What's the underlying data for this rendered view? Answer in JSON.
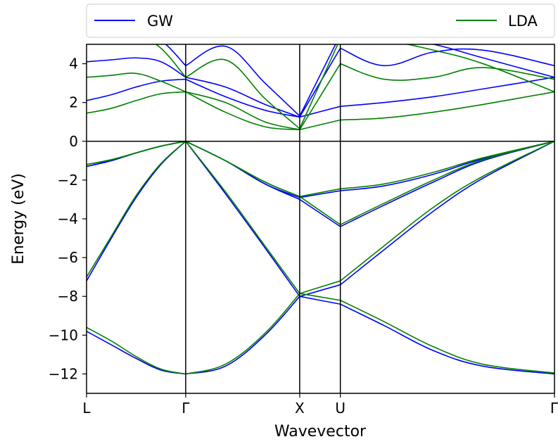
{
  "chart_data": {
    "type": "line",
    "title": "",
    "xlabel": "Wavevector",
    "ylabel": "Energy (eV)",
    "ylim": [
      -13,
      5
    ],
    "xlim": [
      0,
      4.72
    ],
    "y_ticks": [
      4,
      2,
      0,
      -2,
      -4,
      -6,
      -8,
      -10,
      -12
    ],
    "y_tick_labels": [
      "4",
      "2",
      "0",
      "−2",
      "−4",
      "−6",
      "−8",
      "−10",
      "−12"
    ],
    "k_points": [
      {
        "label": "L",
        "x": 0
      },
      {
        "label": "Γ",
        "x": 1.0
      },
      {
        "label": "X",
        "x": 2.15
      },
      {
        "label": "U",
        "x": 2.56
      },
      {
        "label": "Γ",
        "x": 4.72
      }
    ],
    "grid": false,
    "legend": {
      "placement": "top",
      "entries": [
        "GW",
        "LDA"
      ]
    },
    "colors": {
      "GW": "#0000ff",
      "LDA": "#008000"
    },
    "series": [
      {
        "name": "GW",
        "color": "#0000ff",
        "bands": [
          {
            "x": [
              0,
              0.25,
              0.5,
              0.75,
              1.0,
              1.4,
              1.8,
              2.15,
              2.56,
              3.0,
              3.5,
              4.0,
              4.72
            ],
            "y": [
              -9.8,
              -10.5,
              -11.2,
              -11.8,
              -12.0,
              -11.6,
              -10.0,
              -8.0,
              -8.4,
              -9.5,
              -10.8,
              -11.6,
              -12.0
            ]
          },
          {
            "x": [
              0,
              0.25,
              0.5,
              0.75,
              1.0,
              1.4,
              1.8,
              2.15,
              2.56,
              3.0,
              3.5,
              4.0,
              4.72
            ],
            "y": [
              -7.2,
              -5.0,
              -2.9,
              -1.2,
              0,
              -2.7,
              -5.5,
              -8.0,
              -7.4,
              -5.6,
              -3.6,
              -1.9,
              0
            ]
          },
          {
            "x": [
              0,
              0.25,
              0.5,
              0.75,
              1.0,
              1.4,
              1.8,
              2.15,
              2.56,
              3.0,
              3.5,
              4.0,
              4.72
            ],
            "y": [
              -1.3,
              -1.0,
              -0.6,
              -0.25,
              0,
              -1.0,
              -2.2,
              -3.0,
              -4.4,
              -3.3,
              -2.1,
              -1.0,
              0
            ]
          },
          {
            "x": [
              0,
              0.25,
              0.5,
              0.75,
              1.0,
              1.4,
              1.8,
              2.15,
              2.56,
              3.0,
              3.5,
              4.0,
              4.72
            ],
            "y": [
              -1.3,
              -1.0,
              -0.6,
              -0.25,
              0,
              -1.0,
              -2.2,
              -2.9,
              -2.55,
              -2.3,
              -1.7,
              -0.9,
              0
            ]
          },
          {
            "x": [
              0,
              0.25,
              0.5,
              0.75,
              1.0,
              1.4,
              1.8,
              2.15,
              2.56,
              3.0,
              3.5,
              4.0,
              4.72
            ],
            "y": [
              2.1,
              2.4,
              2.8,
              3.1,
              3.2,
              2.3,
              1.6,
              1.25,
              1.8,
              2.0,
              2.3,
              2.7,
              3.3
            ]
          },
          {
            "x": [
              0,
              0.25,
              0.5,
              0.75,
              1.0,
              1.4,
              1.8,
              2.15,
              2.56,
              3.0,
              3.5,
              4.0,
              4.72
            ],
            "y": [
              4.1,
              4.2,
              4.3,
              4.1,
              3.3,
              2.8,
              1.9,
              1.25,
              4.8,
              3.9,
              4.6,
              4.7,
              3.9
            ]
          },
          {
            "x": [
              0,
              0.25,
              0.5,
              0.75,
              1.0,
              1.4,
              1.8,
              2.15,
              2.56,
              3.0,
              3.5,
              4.0,
              4.72
            ],
            "y": [
              5.5,
              5.6,
              5.6,
              5.2,
              3.9,
              4.9,
              3.0,
              1.3,
              5.5,
              5.4,
              5.0,
              4.3,
              3.3
            ]
          }
        ]
      },
      {
        "name": "LDA",
        "color": "#008000",
        "bands": [
          {
            "x": [
              0,
              0.25,
              0.5,
              0.75,
              1.0,
              1.4,
              1.8,
              2.15,
              2.56,
              3.0,
              3.5,
              4.0,
              4.72
            ],
            "y": [
              -9.6,
              -10.3,
              -11.1,
              -11.75,
              -12.0,
              -11.5,
              -9.9,
              -7.85,
              -8.2,
              -9.3,
              -10.6,
              -11.5,
              -11.95
            ]
          },
          {
            "x": [
              0,
              0.25,
              0.5,
              0.75,
              1.0,
              1.4,
              1.8,
              2.15,
              2.56,
              3.0,
              3.5,
              4.0,
              4.72
            ],
            "y": [
              -7.0,
              -4.9,
              -2.8,
              -1.15,
              0,
              -2.6,
              -5.4,
              -7.85,
              -7.2,
              -5.4,
              -3.4,
              -1.8,
              0
            ]
          },
          {
            "x": [
              0,
              0.25,
              0.5,
              0.75,
              1.0,
              1.4,
              1.8,
              2.15,
              2.56,
              3.0,
              3.5,
              4.0,
              4.72
            ],
            "y": [
              -1.2,
              -0.95,
              -0.6,
              -0.25,
              0,
              -1.0,
              -2.1,
              -2.85,
              -4.3,
              -3.2,
              -2.0,
              -0.95,
              0
            ]
          },
          {
            "x": [
              0,
              0.25,
              0.5,
              0.75,
              1.0,
              1.4,
              1.8,
              2.15,
              2.56,
              3.0,
              3.5,
              4.0,
              4.72
            ],
            "y": [
              -1.2,
              -0.95,
              -0.6,
              -0.25,
              0,
              -1.0,
              -2.1,
              -2.85,
              -2.45,
              -2.2,
              -1.6,
              -0.85,
              0
            ]
          },
          {
            "x": [
              0,
              0.25,
              0.5,
              0.75,
              1.0,
              1.4,
              1.8,
              2.15,
              2.56,
              3.0,
              3.5,
              4.0,
              4.72
            ],
            "y": [
              1.45,
              1.7,
              2.1,
              2.45,
              2.55,
              1.5,
              0.75,
              0.6,
              1.1,
              1.2,
              1.5,
              1.9,
              2.55
            ]
          },
          {
            "x": [
              0,
              0.25,
              0.5,
              0.75,
              1.0,
              1.4,
              1.8,
              2.15,
              2.56,
              3.0,
              3.5,
              4.0,
              4.72
            ],
            "y": [
              3.3,
              3.4,
              3.5,
              3.1,
              2.55,
              2.0,
              1.0,
              0.6,
              4.0,
              3.2,
              3.3,
              3.8,
              3.2
            ]
          },
          {
            "x": [
              0,
              0.25,
              0.5,
              0.75,
              1.0,
              1.4,
              1.8,
              2.15,
              2.56,
              3.0,
              3.5,
              4.0,
              4.72
            ],
            "y": [
              5.2,
              5.4,
              5.5,
              4.8,
              3.3,
              4.2,
              2.2,
              0.65,
              5.3,
              5.2,
              4.7,
              4.0,
              2.55
            ]
          }
        ]
      }
    ]
  }
}
